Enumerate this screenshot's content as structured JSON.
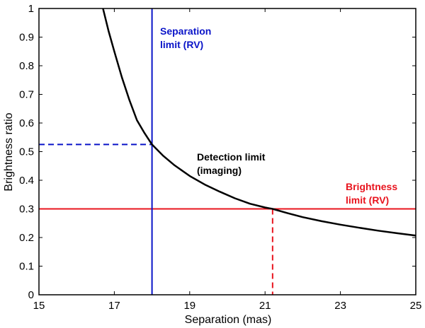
{
  "chart_data": {
    "type": "line",
    "title": "",
    "xlabel": "Separation (mas)",
    "ylabel": "Brightness ratio",
    "xlim": [
      15,
      25
    ],
    "ylim": [
      0,
      1
    ],
    "x_ticks": [
      15,
      17,
      19,
      21,
      23,
      25
    ],
    "y_ticks": [
      0,
      0.1,
      0.2,
      0.3,
      0.4,
      0.5,
      0.6,
      0.7,
      0.8,
      0.9,
      1
    ],
    "y_tick_labels": [
      "0",
      "0.1",
      "0.2",
      "0.3",
      "0.4",
      "0.5",
      "0.6",
      "0.7",
      "0.8",
      "0.9",
      "1"
    ],
    "grid": false,
    "series": [
      {
        "name": "Detection limit (imaging)",
        "color": "#000000",
        "x": [
          16.7,
          16.85,
          17.0,
          17.2,
          17.4,
          17.6,
          17.8,
          18.0,
          18.3,
          18.6,
          19.0,
          19.4,
          19.8,
          20.2,
          20.6,
          21.0,
          21.2,
          21.6,
          22.0,
          22.5,
          23.0,
          23.5,
          24.0,
          24.5,
          25.0
        ],
        "y": [
          1.0,
          0.92,
          0.85,
          0.76,
          0.68,
          0.61,
          0.565,
          0.525,
          0.485,
          0.452,
          0.415,
          0.385,
          0.36,
          0.337,
          0.318,
          0.305,
          0.3,
          0.285,
          0.271,
          0.257,
          0.245,
          0.234,
          0.224,
          0.215,
          0.207
        ]
      }
    ],
    "reference_lines": {
      "separation_limit_rv": {
        "x": 18,
        "color": "#0a14c8",
        "label_line1": "Separation",
        "label_line2": "limit (RV)"
      },
      "brightness_limit_rv": {
        "y": 0.3,
        "color": "#e8141e",
        "label_line1": "Brightness",
        "label_line2": "limit (RV)"
      },
      "blue_dashed_y": 0.525,
      "red_dashed_x": 21.2
    },
    "annotations": {
      "detection_line1": "Detection limit",
      "detection_line2": "(imaging)"
    }
  }
}
